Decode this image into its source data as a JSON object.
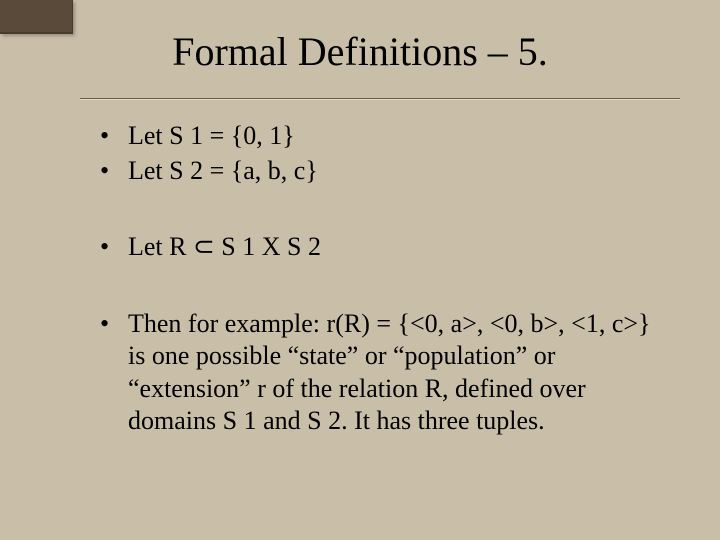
{
  "slide": {
    "title": "Formal Definitions – 5.",
    "background_color": "#c9bfa8",
    "corner_color": "#5a4a3a",
    "divider_color": "#6b5a42",
    "text_color": "#000000",
    "font_family": "Times New Roman",
    "title_fontsize": 40,
    "body_fontsize": 26,
    "groups": [
      {
        "items": [
          "Let S 1 = {0, 1}",
          "Let  S 2 =  {a, b, c}"
        ]
      },
      {
        "items": [
          "Let R ⊂ S 1 X S 2"
        ]
      },
      {
        "items": [
          "Then for example: r(R) = {<0, a>, <0, b>, <1, c>} is one possible “state” or “population” or “extension” r of the relation R, defined over domains S 1 and S 2. It has three tuples."
        ]
      }
    ]
  }
}
